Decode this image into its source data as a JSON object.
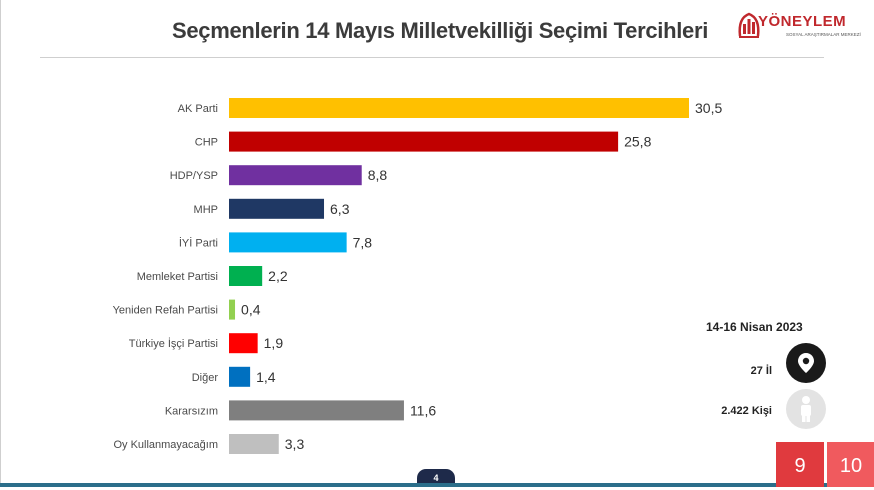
{
  "title": "Seçmenlerin 14 Mayıs Milletvekilliği Seçimi Tercihleri",
  "logo": {
    "word": "YÖNEYLEM",
    "subtitle": "SOSYAL ARAŞTIRMALAR MERKEZİ",
    "color": "#c0282d"
  },
  "info": {
    "date": "14-16 Nisan 2023",
    "provinces": "27 İl",
    "people": "2.422 Kişi"
  },
  "page_badge": "4",
  "slide_numbers": [
    "9",
    "10"
  ],
  "chart_data": {
    "type": "bar",
    "orientation": "horizontal",
    "categories": [
      "AK Parti",
      "CHP",
      "HDP/YSP",
      "MHP",
      "İYİ Parti",
      "Memleket Partisi",
      "Yeniden Refah Partisi",
      "Türkiye İşçi Partisi",
      "Diğer",
      "Kararsızım",
      "Oy Kullanmayacağım"
    ],
    "values": [
      30.5,
      25.8,
      8.8,
      6.3,
      7.8,
      2.2,
      0.4,
      1.9,
      1.4,
      11.6,
      3.3
    ],
    "value_labels": [
      "30,5",
      "25,8",
      "8,8",
      "6,3",
      "7,8",
      "2,2",
      "0,4",
      "1,9",
      "1,4",
      "11,6",
      "3,3"
    ],
    "colors": [
      "#ffc000",
      "#c00000",
      "#7030a0",
      "#1f3864",
      "#00b0f0",
      "#00b050",
      "#92d050",
      "#ff0000",
      "#0070c0",
      "#7f7f7f",
      "#bfbfbf"
    ],
    "xlim": [
      0,
      30.5
    ],
    "title": "Seçmenlerin 14 Mayıs Milletvekilliği Seçimi Tercihleri",
    "xlabel": "",
    "ylabel": "",
    "grid": false
  }
}
